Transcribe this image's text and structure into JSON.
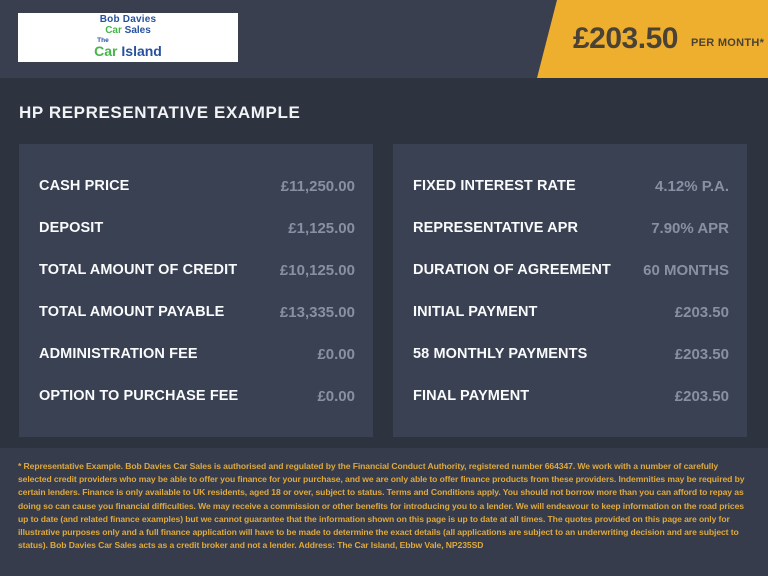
{
  "header": {
    "logo": {
      "line1": "Bob Davies",
      "line2_car": "Car",
      "line2_sales": " Sales",
      "line3_the": "The",
      "line3_car": "Car",
      "line3_island": " Island"
    },
    "badge": {
      "price": "£203.50",
      "period": "PER MONTH*"
    }
  },
  "main": {
    "title": "HP REPRESENTATIVE EXAMPLE",
    "left_rows": [
      {
        "label": "CASH PRICE",
        "value": "£11,250.00"
      },
      {
        "label": "DEPOSIT",
        "value": "£1,125.00"
      },
      {
        "label": "TOTAL AMOUNT OF CREDIT",
        "value": "£10,125.00"
      },
      {
        "label": "TOTAL AMOUNT PAYABLE",
        "value": "£13,335.00"
      },
      {
        "label": "ADMINISTRATION FEE",
        "value": "£0.00"
      },
      {
        "label": "OPTION TO PURCHASE FEE",
        "value": "£0.00"
      }
    ],
    "right_rows": [
      {
        "label": "FIXED INTEREST RATE",
        "value": "4.12% P.A."
      },
      {
        "label": "REPRESENTATIVE APR",
        "value": "7.90% APR"
      },
      {
        "label": "DURATION OF AGREEMENT",
        "value": "60 MONTHS"
      },
      {
        "label": "INITIAL PAYMENT",
        "value": "£203.50"
      },
      {
        "label": "58 MONTHLY PAYMENTS",
        "value": "£203.50"
      },
      {
        "label": "FINAL PAYMENT",
        "value": "£203.50"
      }
    ]
  },
  "footer": {
    "lines": [
      "* Representative Example. Bob Davies Car Sales is authorised and regulated by the Financial Conduct Authority, registered number 664347. We work with a number of carefully selected credit providers who may be",
      "able to offer you finance for your purchase, and we are only able to offer finance products from these providers. Indemnities may be required by certain lenders. Finance is only available to UK residents, aged",
      "18 or over, subject to status. Terms and Conditions apply. You should not borrow more than you can afford to repay as doing so can cause you financial difficulties. We may receive a commission or other benefits",
      "for introducing you to a lender. We will endeavour to keep information on the road prices up to date (and related finance examples) but we cannot guarantee that the information shown on this page is up to date",
      "at all times. The quotes provided on this page are only for illustrative purposes only and a full finance application will have to be made to determine the exact details (all applications are subject to an",
      "underwriting decision and are subject to status). Bob Davies Car Sales acts as a credit broker and not a lender. Address: The Car Island, Ebbw Vale, NP235SD"
    ]
  },
  "colors": {
    "brand_blue": "#27519e",
    "brand_green": "#45b649",
    "badge_yellow": "#efaf2e",
    "badge_text": "#4a4335",
    "header_bg": "#393f4e",
    "main_bg": "#2e3340",
    "panel_bg": "#3a4152",
    "footer_bg": "#363c4b",
    "footer_text": "#dfa93c",
    "label_text": "#fafbfc",
    "value_text": "#8a90a3"
  }
}
